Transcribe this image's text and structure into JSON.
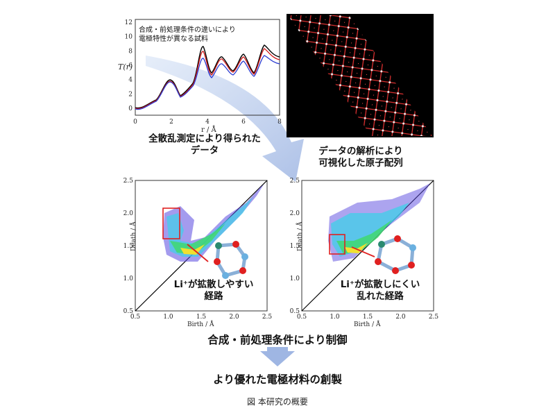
{
  "top_plot": {
    "annotation": [
      "合成・前処理条件の違いにより",
      "電極特性が異なる試料"
    ],
    "xlabel": "r / Å",
    "ylabel": "T(r)",
    "xticks": [
      "0",
      "2",
      "4",
      "6",
      "8"
    ],
    "yticks": [
      "0",
      "2",
      "4",
      "6",
      "8",
      "10",
      "12"
    ]
  },
  "top_left_caption": [
    "全散乱測定により得られた",
    "データ"
  ],
  "top_right_caption": [
    "データの解析により",
    "可視化した原子配列"
  ],
  "ph_left": {
    "xlabel": "Birth / Å",
    "ylabel": "Death / Å",
    "xticks": [
      "0.5",
      "1.0",
      "1.5",
      "2.0",
      "2.5"
    ],
    "yticks": [
      "0.5",
      "1.0",
      "1.5",
      "2.0",
      "2.5"
    ],
    "annotation": [
      "Li⁺が拡散しやすい",
      "経路"
    ]
  },
  "ph_right": {
    "xlabel": "Birth / Å",
    "ylabel": "Death / Å",
    "xticks": [
      "0.5",
      "1.0",
      "1.5",
      "2.0",
      "2.5"
    ],
    "yticks": [
      "0.5",
      "1.0",
      "1.5",
      "2.0",
      "2.5"
    ],
    "annotation": [
      "Li⁺が拡散しにくい",
      "乱れた経路"
    ]
  },
  "control_text": "合成・前処理条件により制御",
  "result_text": "より優れた電極材料の創製",
  "figure_caption": "図 本研究の概要",
  "colors": {
    "curve_black": "#000000",
    "curve_red": "#d01818",
    "curve_blue": "#2a3ad0",
    "arrow": "#a8bde6",
    "highlight": "#e02020"
  }
}
